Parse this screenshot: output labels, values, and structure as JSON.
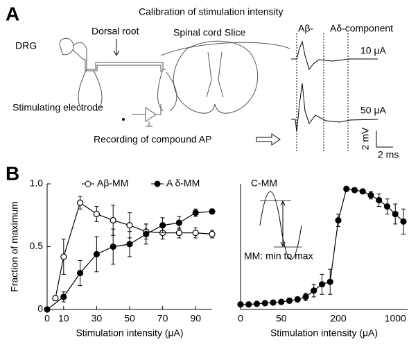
{
  "figure": {
    "panel_a_label": "A",
    "panel_b_label": "B",
    "title": "Calibration of stimulation intensity",
    "drg": "DRG",
    "dorsal_root": "Dorsal root",
    "spinal_cord": "Spinal cord Slice",
    "stim_electrode": "Stimulating electrode",
    "recording": "Recording of compound AP",
    "abeta": "Aβ-",
    "adelta": "Aδ-component",
    "trace1": "10 μA",
    "trace2": "50 μA",
    "scale_v": "2 mV",
    "scale_t": "2 ms"
  },
  "chart_data": [
    {
      "type": "line",
      "x_label": "Stimulation intensity (μA)",
      "y_label": "Fraction of maximum",
      "xlim": [
        0,
        100
      ],
      "xticks": [
        0,
        10,
        30,
        50,
        70,
        90
      ],
      "ylim": [
        0,
        1
      ],
      "yticks": [
        0,
        0.5,
        {
          "value": 1,
          "label": "1.0"
        }
      ],
      "legend": "top",
      "series": [
        {
          "name": "Aβ-MM",
          "marker": "open",
          "color": "#000000",
          "x": [
            5,
            10,
            20,
            30,
            40,
            50,
            60,
            70,
            80,
            90,
            100
          ],
          "values": [
            0.09,
            0.42,
            0.85,
            0.76,
            0.71,
            0.67,
            0.62,
            0.61,
            0.61,
            0.61,
            0.6
          ],
          "errors": [
            0.02,
            0.14,
            0.05,
            0.06,
            0.12,
            0.1,
            0.06,
            0.05,
            0.04,
            0.04,
            0.03
          ]
        },
        {
          "name": "A δ-MM",
          "marker": "filled",
          "color": "#000000",
          "x": [
            0,
            10,
            20,
            30,
            40,
            50,
            60,
            70,
            80,
            90,
            100
          ],
          "values": [
            0,
            0.1,
            0.29,
            0.44,
            0.5,
            0.52,
            0.6,
            0.67,
            0.69,
            0.77,
            0.78
          ],
          "errors": [
            0,
            0.04,
            0.1,
            0.14,
            0.14,
            0.1,
            0.08,
            0.06,
            0.05,
            0.03,
            0.02
          ]
        }
      ]
    },
    {
      "type": "line",
      "title": "C-MM",
      "x_label": "Stimulation intensity (μA)",
      "annotation": "MM: min to max",
      "categories": [
        "0",
        null,
        null,
        null,
        null,
        "50",
        null,
        null,
        null,
        null,
        null,
        null,
        "200",
        null,
        null,
        null,
        null,
        null,
        null,
        "1000",
        null
      ],
      "ylim": [
        0,
        1
      ],
      "series": [
        {
          "name": "C-MM",
          "marker": "filled",
          "color": "#000000",
          "values": [
            0.04,
            0.04,
            0.045,
            0.05,
            0.055,
            0.06,
            0.07,
            0.08,
            0.1,
            0.15,
            0.2,
            0.22,
            0.71,
            0.96,
            0.95,
            0.94,
            0.91,
            0.87,
            0.82,
            0.76,
            0.7
          ],
          "errors": [
            0,
            0,
            0,
            0,
            0.01,
            0.01,
            0.02,
            0.02,
            0.03,
            0.05,
            0.08,
            0.1,
            0.05,
            0.01,
            0.01,
            0.01,
            0.03,
            0.05,
            0.06,
            0.08,
            0.1
          ]
        }
      ]
    }
  ]
}
